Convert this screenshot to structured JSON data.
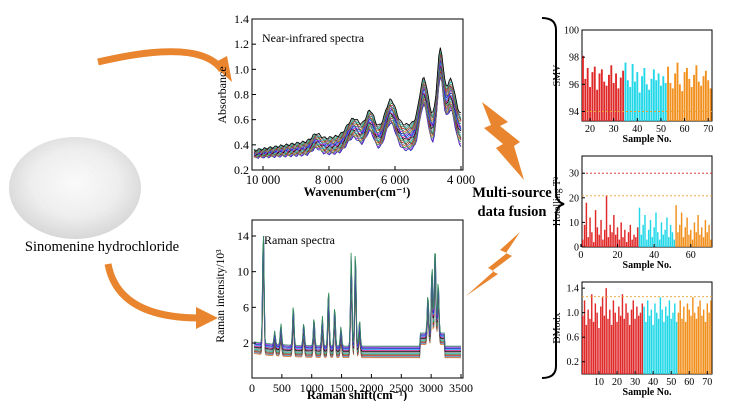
{
  "sample": {
    "label": "Sinomenine hydrochloride"
  },
  "fusion": {
    "line1": "Multi-source",
    "line2": "data fusion"
  },
  "nir": {
    "title": "Near-infrared spectra",
    "xlabel": "Wavenumber(cm⁻¹)",
    "ylabel": "Absorbance",
    "xticks": [
      "10 000",
      "8 000",
      "6 000",
      "4 000"
    ],
    "yticks": [
      "0.2",
      "0.4",
      "0.6",
      "0.8",
      "1.0",
      "1.2",
      "1.4"
    ]
  },
  "raman": {
    "title": "Raman spectra",
    "xlabel": "Raman shift(cm⁻¹)",
    "ylabel": "Raman intensity/10³",
    "xticks": [
      "0",
      "500",
      "1000",
      "1500",
      "2000",
      "2500",
      "3000",
      "3500"
    ],
    "yticks": [
      "2",
      "6",
      "10",
      "14"
    ]
  },
  "colors": {
    "arrow": "#e8852e",
    "red": "#e02a2a",
    "cyan": "#22d8e8",
    "orange": "#f2901e"
  },
  "chart_data": [
    {
      "type": "bar",
      "title": "",
      "xlabel": "Sample No.",
      "ylabel": "SMV",
      "xticks": [
        "20",
        "30",
        "40",
        "50",
        "60",
        "70"
      ],
      "yticks": [
        "94",
        "96",
        "98",
        "100"
      ],
      "ylim": [
        93.3,
        100
      ],
      "x_start": 17,
      "groups": [
        {
          "color": "red",
          "values": [
            98.1,
            96.4,
            97.2,
            95.8,
            96.9,
            97.3,
            95.6,
            96.8,
            97.1,
            96.2,
            95.9,
            96.7,
            97.4,
            96.1,
            96.8,
            95.7,
            96.5,
            97.0
          ]
        },
        {
          "color": "cyan",
          "values": [
            97.6,
            96.3,
            95.8,
            97.5,
            96.2,
            96.9,
            95.4,
            96.6,
            97.2,
            96.0,
            95.6,
            96.4,
            97.1,
            96.3,
            96.8,
            95.9,
            96.6,
            96.1
          ]
        },
        {
          "color": "orange",
          "values": [
            97.3,
            96.1,
            95.7,
            96.8,
            97.6,
            96.0,
            95.5,
            96.9,
            97.2,
            96.4,
            95.8,
            96.7,
            97.4,
            96.2,
            95.9,
            96.6,
            97.0,
            96.3,
            95.7
          ]
        }
      ],
      "ref_lines": [
        94
      ]
    },
    {
      "type": "bar",
      "title": "",
      "xlabel": "Sample No.",
      "ylabel": "Hotelling T²",
      "xticks": [
        "0",
        "20",
        "40",
        "60"
      ],
      "yticks": [
        "0",
        "10",
        "20",
        "30"
      ],
      "ylim": [
        0,
        37
      ],
      "x_start": 1,
      "groups": [
        {
          "color": "red",
          "values": [
            3,
            9,
            18,
            4,
            12,
            6,
            2,
            15,
            8,
            5,
            11,
            3,
            7,
            21,
            4,
            9,
            6,
            13,
            5,
            8,
            3,
            10,
            4,
            7,
            2,
            6,
            9,
            3,
            5,
            4,
            8
          ]
        },
        {
          "color": "cyan",
          "values": [
            16,
            5,
            9,
            13,
            3,
            7,
            11,
            4,
            8,
            14,
            6,
            3,
            10,
            5,
            7,
            12,
            4,
            9,
            6,
            3
          ]
        },
        {
          "color": "orange",
          "values": [
            17,
            6,
            9,
            14,
            4,
            8,
            12,
            5,
            7,
            3,
            10,
            6,
            13,
            5,
            8,
            4,
            11,
            6,
            9,
            3
          ]
        }
      ],
      "ref_lines": [
        30,
        20.8
      ]
    },
    {
      "type": "bar",
      "title": "",
      "xlabel": "Sample No.",
      "ylabel": "DModx",
      "xticks": [
        "10",
        "20",
        "30",
        "40",
        "50",
        "60",
        "70"
      ],
      "yticks": [
        "0.2",
        "0.6",
        "1.0",
        "1.4"
      ],
      "ylim": [
        0,
        1.5
      ],
      "x_start": 1,
      "groups": [
        {
          "color": "red",
          "values": [
            0.95,
            1.2,
            0.8,
            1.05,
            0.9,
            1.3,
            0.85,
            1.15,
            1.0,
            0.75,
            1.1,
            1.25,
            0.95,
            1.4,
            0.9,
            1.05,
            0.8,
            1.2,
            1.0,
            0.85,
            1.1,
            0.95,
            1.3,
            0.9,
            1.15,
            1.0,
            0.8,
            1.05,
            1.2,
            0.9,
            1.1,
            0.95,
            1.0,
            1.15
          ]
        },
        {
          "color": "cyan",
          "values": [
            1.1,
            0.85,
            1.2,
            0.95,
            1.05,
            0.8,
            1.15,
            1.0,
            0.9,
            1.25,
            1.05,
            0.85,
            1.1,
            0.95,
            1.2,
            0.9,
            1.0,
            1.15,
            0.85
          ]
        },
        {
          "color": "orange",
          "values": [
            1.0,
            1.2,
            0.9,
            1.1,
            0.85,
            1.15,
            1.05,
            0.95,
            1.25,
            1.0,
            0.9,
            1.1,
            1.2,
            0.95,
            1.05,
            0.85,
            1.15,
            1.0,
            1.2
          ]
        }
      ],
      "ref_lines": [
        1.26
      ]
    }
  ]
}
